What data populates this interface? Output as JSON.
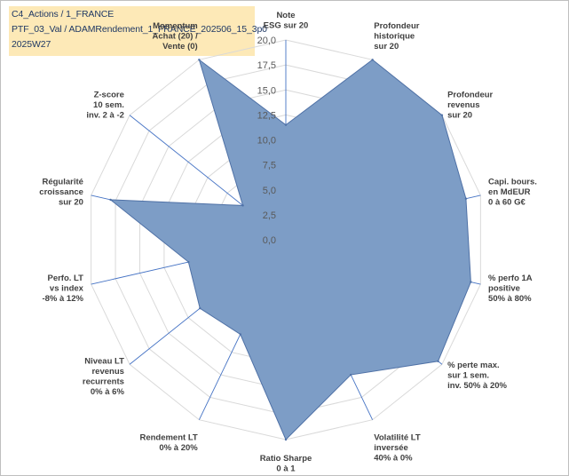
{
  "header": {
    "line1": "C4_Actions / 1_FRANCE",
    "line2": "PTF_03_Val / ADAMRendement_1_FRANCE_202506_15_3p0",
    "line3": "2025W27"
  },
  "chart_data": {
    "type": "radar",
    "rmin": 0,
    "rmax": 20,
    "tick_step": 2.5,
    "tick_labels": [
      "0,0",
      "2,5",
      "5,0",
      "7,5",
      "10,0",
      "12,5",
      "15,0",
      "17,5",
      "20,0"
    ],
    "grid": true,
    "fill_color": "#7d9dc6",
    "line_color": "#4f71a6",
    "grid_color": "#d9d9d9",
    "spoke_color": "#4472c4",
    "categories": [
      {
        "label": [
          "Note",
          "ESG sur 20"
        ]
      },
      {
        "label": [
          "Profondeur",
          "historique",
          "sur 20"
        ]
      },
      {
        "label": [
          "Profondeur",
          "revenus",
          "sur 20"
        ]
      },
      {
        "label": [
          "Capi. bours.",
          "en MdEUR",
          "0 à 60 G€"
        ]
      },
      {
        "label": [
          "% perfo 1A",
          "positive",
          "50% à 80%"
        ]
      },
      {
        "label": [
          "% perte max.",
          "sur 1 sem.",
          "inv. 50% à 20%"
        ]
      },
      {
        "label": [
          "Volatilité LT",
          "inversée",
          "40% à 0%"
        ]
      },
      {
        "label": [
          "Ratio Sharpe",
          "0 à 1"
        ]
      },
      {
        "label": [
          "Rendement LT",
          "0% à 20%"
        ]
      },
      {
        "label": [
          "Niveau LT",
          "revenus",
          "recurrents",
          "0% à 6%"
        ]
      },
      {
        "label": [
          "Perfo. LT",
          "vs index",
          "-8% à 12%"
        ]
      },
      {
        "label": [
          "Régularité",
          "croissance",
          "sur 20"
        ]
      },
      {
        "label": [
          "Z-score",
          "10 sem.",
          "inv. 2 à -2"
        ]
      },
      {
        "label": [
          "Momentum",
          "Achat (20) /",
          "Vente (0)"
        ]
      }
    ],
    "series": [
      {
        "values": [
          11.5,
          20,
          20,
          18.5,
          19,
          19.5,
          15,
          20,
          10.5,
          11,
          10,
          18,
          5.5,
          20
        ]
      }
    ]
  }
}
